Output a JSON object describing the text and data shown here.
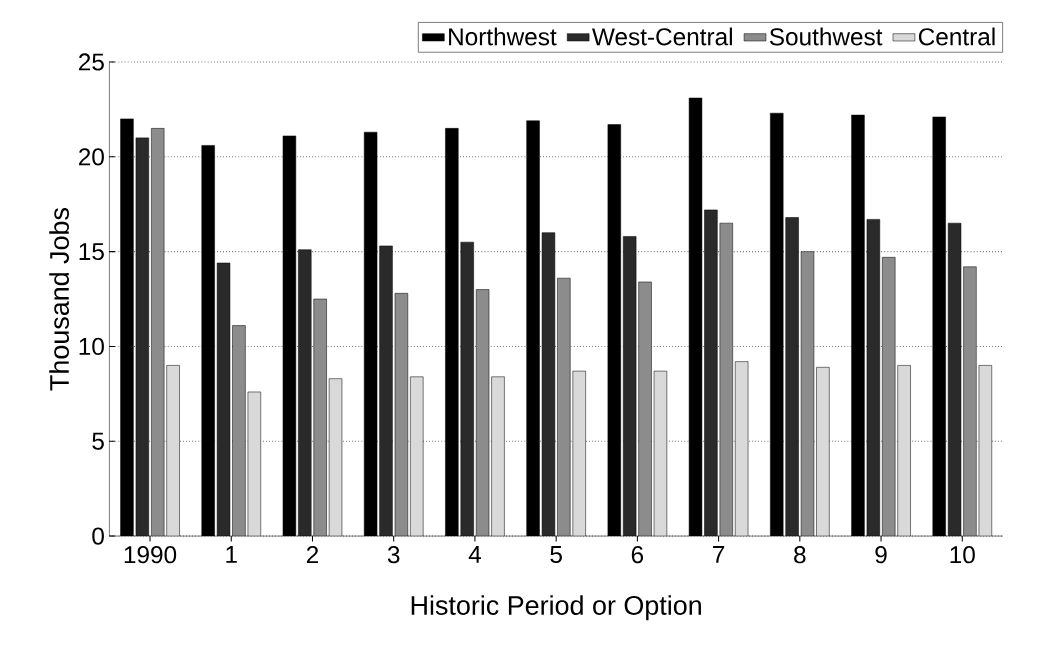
{
  "chart_data": {
    "type": "bar",
    "xlabel": "Historic Period or Option",
    "ylabel": "Thousand Jobs",
    "categories": [
      "1990",
      "1",
      "2",
      "3",
      "4",
      "5",
      "6",
      "7",
      "8",
      "9",
      "10"
    ],
    "series": [
      {
        "name": "Northwest",
        "color": "#000000",
        "values": [
          22,
          20.6,
          21.1,
          21.3,
          21.5,
          21.9,
          21.7,
          23.1,
          22.3,
          22.2,
          22.1
        ]
      },
      {
        "name": "West-Central",
        "color": "#2a2a2a",
        "values": [
          21,
          14.4,
          15.1,
          15.3,
          15.5,
          16,
          15.8,
          17.2,
          16.8,
          16.7,
          16.5
        ]
      },
      {
        "name": "Southwest",
        "color": "#8c8c8c",
        "values": [
          21.5,
          11.1,
          12.5,
          12.8,
          13,
          13.6,
          13.4,
          16.5,
          15,
          14.7,
          14.2
        ]
      },
      {
        "name": "Central",
        "color": "#d9d9d9",
        "values": [
          9,
          7.6,
          8.3,
          8.4,
          8.4,
          8.7,
          8.7,
          9.2,
          8.9,
          9,
          9
        ]
      }
    ],
    "ylim": [
      0,
      25
    ],
    "yticks": [
      0,
      5,
      10,
      15,
      20,
      25
    ],
    "grid": "y",
    "legend": "top right"
  }
}
